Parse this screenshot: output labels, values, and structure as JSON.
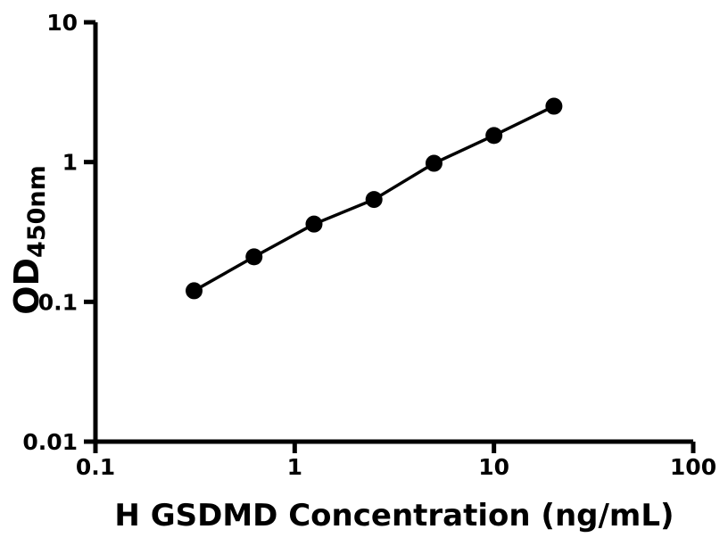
{
  "figure": {
    "background": "#ffffff"
  },
  "chart_data": {
    "type": "scatter",
    "mode": "line+markers",
    "title": "",
    "xlabel": "H GSDMD Concentration (ng/mL)",
    "ylabel": {
      "main": "OD",
      "sub": "450nm"
    },
    "xscale": "log",
    "yscale": "log",
    "xlim": [
      0.1,
      100
    ],
    "ylim": [
      0.01,
      10
    ],
    "x": [
      0.3125,
      0.625,
      1.25,
      2.5,
      5,
      10,
      20
    ],
    "y": [
      0.12,
      0.21,
      0.36,
      0.54,
      0.98,
      1.55,
      2.51
    ],
    "xticks": {
      "values": [
        0.1,
        1,
        10,
        100
      ],
      "labels": [
        "0.1",
        "1",
        "10",
        "100"
      ]
    },
    "yticks": {
      "values": [
        0.01,
        0.1,
        1,
        10
      ],
      "labels": [
        "0.01",
        "0.1",
        "1",
        "10"
      ]
    },
    "grid": false,
    "legend": false,
    "colors": {
      "axis": "#000000",
      "line": "#000000",
      "marker": "#000000",
      "text": "#000000",
      "background": "#ffffff"
    }
  }
}
